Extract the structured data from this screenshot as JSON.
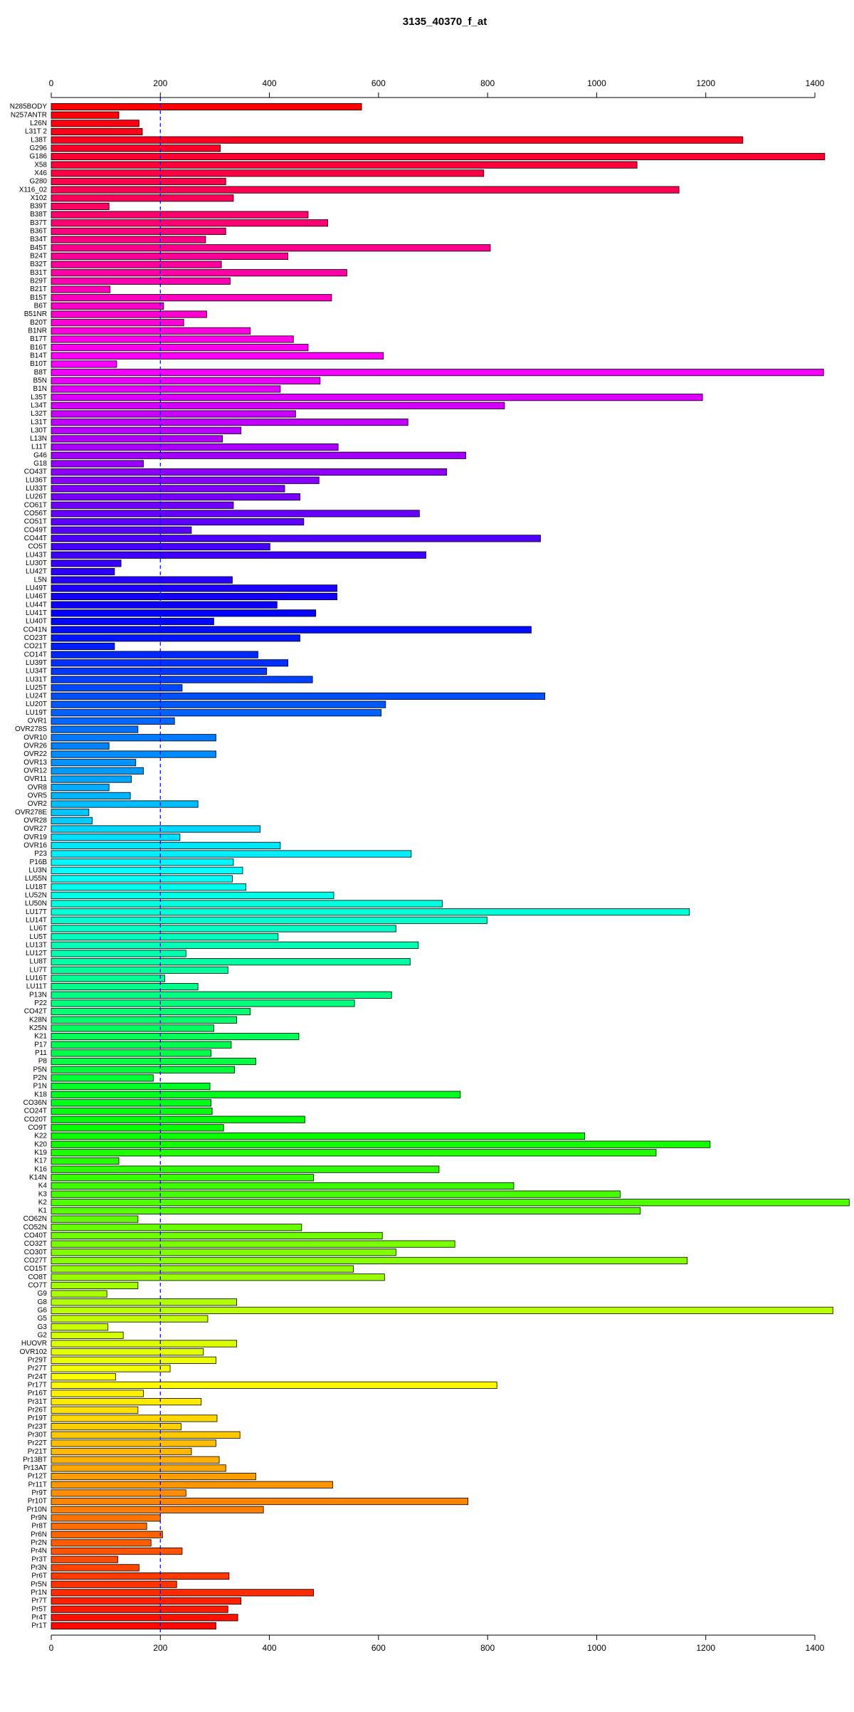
{
  "chart_data": {
    "type": "bar",
    "orientation": "horizontal",
    "title": "3135_40370_f_at",
    "categories": [
      "N285BODY",
      "N257ANTR",
      "L26N",
      "L31T 2",
      "L38T",
      "G296",
      "G186",
      "X58",
      "X46",
      "G280",
      "X116_02",
      "X102",
      "B39T",
      "B38T",
      "B37T",
      "B36T",
      "B34T",
      "B45T",
      "B24T",
      "B32T",
      "B31T",
      "B29T",
      "B21T",
      "B15T",
      "B6T",
      "B51NR",
      "B20T",
      "B1NR",
      "B17T",
      "B16T",
      "B14T",
      "B10T",
      "B8T",
      "B5N",
      "B1N",
      "L35T",
      "L34T",
      "L32T",
      "L31T",
      "L30T",
      "L13N",
      "L11T",
      "G46",
      "G18",
      "CO43T",
      "LU36T",
      "LU33T",
      "LU26T",
      "CO61T",
      "CO56T",
      "CO51T",
      "CO49T",
      "CO44T",
      "CO5T",
      "LU43T",
      "LU30T",
      "LU42T",
      "L5N",
      "LU49T",
      "LU46T",
      "LU44T",
      "LU41T",
      "LU40T",
      "CO41N",
      "CO23T",
      "CO21T",
      "CO14T",
      "LU39T",
      "LU34T",
      "LU31T",
      "LU25T",
      "LU24T",
      "LU20T",
      "LU19T",
      "OVR1",
      "OVR278S",
      "OVR10",
      "OVR26",
      "OVR22",
      "OVR13",
      "OVR12",
      "OVR11",
      "OVR8",
      "OVR5",
      "OVR2",
      "OVR278E",
      "OVR28",
      "OVR27",
      "OVR19",
      "OVR16",
      "P23",
      "P16B",
      "LU3N",
      "LU55N",
      "LU18T",
      "LU52N",
      "LU50N",
      "LU17T",
      "LU14T",
      "LU6T",
      "LU5T",
      "LU13T",
      "LU12T",
      "LU8T",
      "LU7T",
      "LU16T",
      "LU11T",
      "P13N",
      "P22",
      "CO42T",
      "K28N",
      "K25N",
      "K21",
      "P17",
      "P11",
      "P8",
      "P5N",
      "P2N",
      "P1N",
      "K18",
      "CO36N",
      "CO24T",
      "CO20T",
      "CO9T",
      "K22",
      "K20",
      "K19",
      "K17",
      "K16",
      "K14N",
      "K4",
      "K3",
      "K2",
      "K1",
      "CO62N",
      "CO52N",
      "CO40T",
      "CO32T",
      "CO30T",
      "CO27T",
      "CO15T",
      "CO8T",
      "CO7T",
      "G9",
      "G8",
      "G6",
      "G5",
      "G3",
      "G2",
      "HUOVR",
      "OVR102",
      "Pr29T",
      "Pr27T",
      "Pr24T",
      "Pr17T",
      "Pr16T",
      "Pr31T",
      "Pr26T",
      "Pr19T",
      "Pr23T",
      "Pr30T",
      "Pr22T",
      "Pr21T",
      "Pr13BT",
      "Pr13AT",
      "Pr12T",
      "Pr11T",
      "Pr9T",
      "Pr10T",
      "Pr10N",
      "Pr9N",
      "Pr8T",
      "Pr6N",
      "Pr2N",
      "Pr4N",
      "Pr3T",
      "Pr3N",
      "Pr6T",
      "Pr5N",
      "Pr1N",
      "Pr7T",
      "Pr5T",
      "Pr4T",
      "Pr1T"
    ],
    "values": [
      569,
      124,
      161,
      167,
      1268,
      310,
      1418,
      1074,
      793,
      320,
      1151,
      334,
      106,
      471,
      507,
      320,
      283,
      805,
      434,
      312,
      542,
      328,
      108,
      514,
      206,
      285,
      243,
      365,
      444,
      471,
      609,
      120,
      1416,
      493,
      420,
      1194,
      831,
      448,
      654,
      348,
      314,
      526,
      760,
      169,
      725,
      491,
      428,
      456,
      334,
      675,
      463,
      257,
      897,
      401,
      687,
      128,
      116,
      332,
      524,
      524,
      414,
      485,
      298,
      880,
      456,
      116,
      379,
      434,
      395,
      479,
      240,
      905,
      613,
      605,
      226,
      159,
      302,
      106,
      302,
      155,
      169,
      147,
      106,
      145,
      269,
      69,
      75,
      383,
      236,
      420,
      660,
      334,
      351,
      332,
      357,
      518,
      717,
      1170,
      799,
      632,
      416,
      673,
      247,
      658,
      324,
      208,
      269,
      624,
      556,
      365,
      340,
      298,
      454,
      330,
      293,
      375,
      336,
      187,
      291,
      750,
      293,
      295,
      465,
      316,
      978,
      1208,
      1109,
      124,
      711,
      481,
      848,
      1043,
      1463,
      1080,
      159,
      459,
      607,
      740,
      632,
      1166,
      554,
      611,
      159,
      102,
      340,
      1433,
      287,
      104,
      132,
      340,
      279,
      302,
      218,
      118,
      817,
      169,
      275,
      159,
      304,
      238,
      346,
      302,
      257,
      308,
      320,
      375,
      516,
      247,
      764,
      389,
      200,
      175,
      204,
      183,
      240,
      122,
      161,
      326,
      230,
      481,
      348,
      324,
      342,
      302
    ],
    "colors": [
      "#FF0000",
      "#FF0008",
      "#FF0011",
      "#FF0019",
      "#FF0021",
      "#FF002A",
      "#FF0032",
      "#FF003A",
      "#FF0043",
      "#FF004B",
      "#FF0053",
      "#FF005B",
      "#FF0064",
      "#FF006C",
      "#FF0074",
      "#FF007D",
      "#FF0085",
      "#FF008D",
      "#FF0096",
      "#FF009E",
      "#FF00A6",
      "#FF00AF",
      "#FF00B7",
      "#FF00BF",
      "#FF00C8",
      "#FF00D0",
      "#FF00D8",
      "#FF00E0",
      "#FF00E9",
      "#FF00F1",
      "#FF00F9",
      "#FC00FF",
      "#F400FF",
      "#EC00FF",
      "#E300FF",
      "#DB00FF",
      "#D300FF",
      "#CA00FF",
      "#C200FF",
      "#BA00FF",
      "#B100FF",
      "#A900FF",
      "#A100FF",
      "#9900FF",
      "#9000FF",
      "#8800FF",
      "#8000FF",
      "#7700FF",
      "#6F00FF",
      "#6700FF",
      "#5E00FF",
      "#5600FF",
      "#4E00FF",
      "#4500FF",
      "#3D00FF",
      "#3500FF",
      "#2C00FF",
      "#2400FF",
      "#1C00FF",
      "#1300FF",
      "#0B00FF",
      "#0300FF",
      "#0006FF",
      "#000EFF",
      "#0016FF",
      "#001FFF",
      "#0027FF",
      "#002FFF",
      "#0038FF",
      "#0040FF",
      "#0048FF",
      "#0050FF",
      "#0059FF",
      "#0061FF",
      "#0069FF",
      "#0072FF",
      "#007AFF",
      "#0082FF",
      "#008BFF",
      "#0093FF",
      "#009BFF",
      "#00A4FF",
      "#00ACFF",
      "#00B4FF",
      "#00BDFF",
      "#00C5FF",
      "#00CDFF",
      "#00D6FF",
      "#00DEFF",
      "#00E6FF",
      "#00EEFF",
      "#00F7FF",
      "#00FFFF",
      "#00FFF7",
      "#00FFEE",
      "#00FFE6",
      "#00FFDE",
      "#00FFD6",
      "#00FFCD",
      "#00FFC5",
      "#00FFBD",
      "#00FFB4",
      "#00FFAC",
      "#00FFA4",
      "#00FF9B",
      "#00FF93",
      "#00FF8B",
      "#00FF82",
      "#00FF7A",
      "#00FF72",
      "#00FF69",
      "#00FF61",
      "#00FF59",
      "#00FF50",
      "#00FF48",
      "#00FF40",
      "#00FF38",
      "#00FF2F",
      "#00FF27",
      "#00FF1F",
      "#00FF16",
      "#00FF0E",
      "#00FF06",
      "#03FF00",
      "#0BFF00",
      "#13FF00",
      "#1CFF00",
      "#24FF00",
      "#2CFF00",
      "#35FF00",
      "#3DFF00",
      "#45FF00",
      "#4EFF00",
      "#56FF00",
      "#5EFF00",
      "#67FF00",
      "#6FFF00",
      "#77FF00",
      "#80FF00",
      "#88FF00",
      "#90FF00",
      "#99FF00",
      "#A1FF00",
      "#A9FF00",
      "#B1FF00",
      "#BAFF00",
      "#C2FF00",
      "#CAFF00",
      "#D3FF00",
      "#DBFF00",
      "#E3FF00",
      "#ECFF00",
      "#F4FF00",
      "#FCFF00",
      "#FFF900",
      "#FFF100",
      "#FFE900",
      "#FFE000",
      "#FFD800",
      "#FFD000",
      "#FFC800",
      "#FFBF00",
      "#FFB700",
      "#FFAF00",
      "#FFA600",
      "#FF9E00",
      "#FF9600",
      "#FF8D00",
      "#FF8500",
      "#FF7D00",
      "#FF7400",
      "#FF6C00",
      "#FF6400",
      "#FF5B00",
      "#FF5300",
      "#FF4B00",
      "#FF4300",
      "#FF3A00",
      "#FF3200",
      "#FF2A00",
      "#FF2100",
      "#FF1900",
      "#FF1100",
      "#FF0800"
    ],
    "xlim": [
      0,
      1400
    ],
    "xticks": [
      0,
      200,
      400,
      600,
      800,
      1000,
      1200,
      1400
    ],
    "reference_line": {
      "value": 200,
      "color": "#0000ff"
    }
  }
}
